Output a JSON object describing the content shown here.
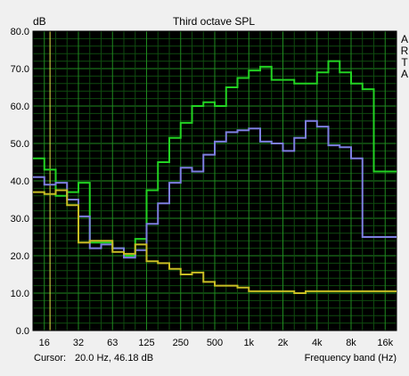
{
  "chart_data": {
    "type": "line",
    "title": "Third octave SPL",
    "ylabel": "dB",
    "xlabel": "Frequency band (Hz)",
    "side_label": [
      "A",
      "R",
      "T",
      "A"
    ],
    "ylim": [
      0,
      80
    ],
    "y_ticks": [
      "0.0",
      "10.0",
      "20.0",
      "30.0",
      "40.0",
      "50.0",
      "60.0",
      "70.0",
      "80.0"
    ],
    "x_tick_labels": [
      "16",
      "32",
      "63",
      "125",
      "250",
      "500",
      "1k",
      "2k",
      "4k",
      "8k",
      "16k"
    ],
    "x_bands": [
      "16",
      "20",
      "25",
      "31.5",
      "40",
      "50",
      "63",
      "80",
      "100",
      "125",
      "160",
      "200",
      "250",
      "315",
      "400",
      "500",
      "630",
      "800",
      "1k",
      "1.25k",
      "1.6k",
      "2k",
      "2.5k",
      "3.15k",
      "4k",
      "5k",
      "6.3k",
      "8k",
      "10k",
      "12.5k",
      "16k",
      "20k"
    ],
    "grid": true,
    "series": [
      {
        "color": "#22d322",
        "values": [
          46,
          43,
          36,
          37,
          39.5,
          23.5,
          23.5,
          22,
          20,
          24.5,
          37.5,
          45,
          51.5,
          55.5,
          60,
          61,
          60,
          65,
          67.5,
          69.5,
          70.5,
          67,
          67,
          66,
          66,
          69,
          72,
          69,
          66,
          64.5,
          42.5,
          42.5
        ]
      },
      {
        "color": "#7d7fe0",
        "values": [
          41,
          39,
          39.5,
          35,
          30.5,
          22,
          23,
          22,
          19.5,
          21.5,
          28.5,
          34,
          39.5,
          43.5,
          42.5,
          47,
          50.5,
          53,
          53.5,
          54,
          50.5,
          50,
          48,
          51.5,
          56,
          54.5,
          49.5,
          49,
          46,
          25,
          25,
          25
        ]
      },
      {
        "color": "#c8be24",
        "values": [
          37,
          36.5,
          37.5,
          33.5,
          23.5,
          24,
          24,
          21,
          20.5,
          23,
          18.5,
          18,
          16.5,
          15,
          15.5,
          13,
          12,
          12,
          11.5,
          10.5,
          10.5,
          10.5,
          10.5,
          10,
          10.5,
          10.5,
          10.5,
          10.5,
          10.5,
          10.5,
          10.5,
          10.5
        ]
      }
    ],
    "marker_band": "20"
  },
  "status": {
    "cursor_label": "Cursor:",
    "cursor_value": "20.0 Hz, 46.18 dB",
    "axis_name": "Frequency band (Hz)"
  }
}
